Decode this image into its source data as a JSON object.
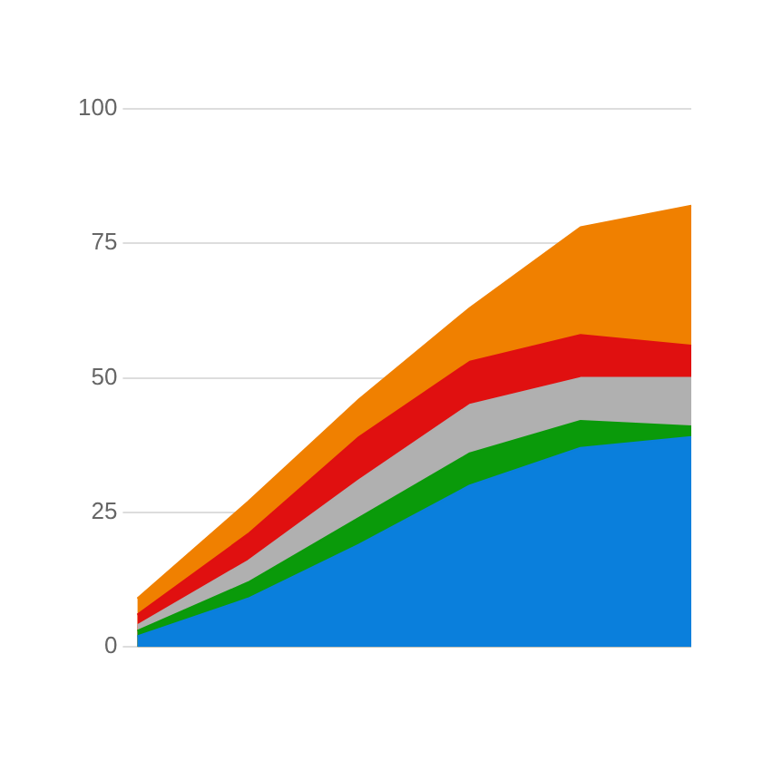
{
  "chart_data": {
    "type": "area",
    "categories": [
      null,
      null,
      null,
      null,
      null,
      null
    ],
    "series": [
      {
        "color": "#0a7fdc",
        "values": [
          2,
          9,
          19,
          30,
          37,
          39
        ]
      },
      {
        "color": "#0a9a0a",
        "values": [
          3,
          12,
          24,
          36,
          42,
          41
        ]
      },
      {
        "color": "#b0b0b0",
        "values": [
          4,
          16,
          31,
          45,
          50,
          50
        ]
      },
      {
        "color": "#e01010",
        "values": [
          6,
          21,
          39,
          53,
          58,
          56
        ]
      },
      {
        "color": "#f08000",
        "values": [
          9,
          27,
          46,
          63,
          78,
          82
        ]
      }
    ],
    "ylim": [
      0,
      100
    ],
    "yticks": [
      0,
      25,
      50,
      75,
      100
    ],
    "grid": "y"
  }
}
